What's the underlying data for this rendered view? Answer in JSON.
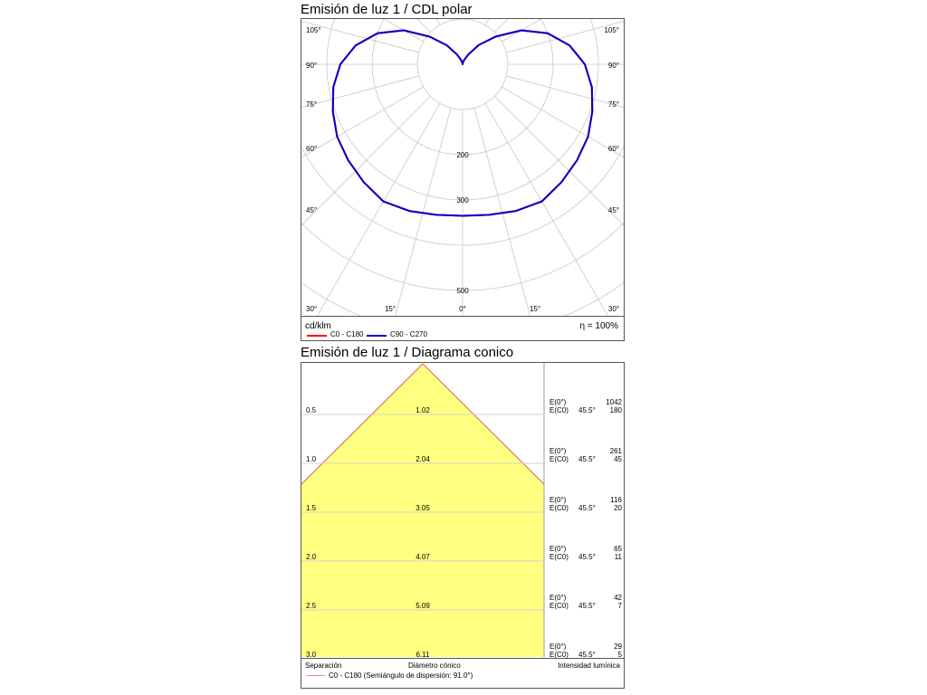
{
  "polar_chart": {
    "title": "Emisión de luz 1 / CDL polar",
    "unit": "cd/klm",
    "efficiency": "η = 100%",
    "radial_labels": [
      "200",
      "300",
      "500"
    ],
    "angle_labels_left": [
      "105°",
      "90°",
      "75°",
      "60°",
      "45°",
      "30°"
    ],
    "angle_labels_right": [
      "105°",
      "90°",
      "75°",
      "60°",
      "45°",
      "30°"
    ],
    "bottom_labels": [
      "15°",
      "0°",
      "15°"
    ],
    "legend": [
      {
        "label": "C0 - C180",
        "color": "#ff0000"
      },
      {
        "label": "C90 - C270",
        "color": "#0000cc"
      }
    ]
  },
  "cone_chart": {
    "title": "Emisión de luz 1 / Diagrama conico",
    "footer": {
      "separation_label": "Separación",
      "diameter_label": "Diámetro cónico",
      "intensity_label": "Intensidad lumínica",
      "legend_label": "C0 - C180 (Semiángulo de dispersión: 91.0°)"
    },
    "e0_label": "E(0°)",
    "ec0_label": "E(C0)",
    "angle_label": "45.5°"
  },
  "chart_data": [
    {
      "type": "line",
      "title": "Emisión de luz 1 / CDL polar",
      "coordinate_system": "polar",
      "ylabel": "cd/klm",
      "radial_ticks": [
        200,
        300,
        500
      ],
      "angle_ticks_deg": [
        0,
        15,
        30,
        45,
        60,
        75,
        90,
        105
      ],
      "series": [
        {
          "name": "C90 - C270",
          "color": "#0000cc",
          "angles_deg": [
            0,
            10,
            20,
            30,
            40,
            50,
            60,
            70,
            80,
            90,
            100,
            110,
            120,
            130,
            140,
            150,
            160,
            170,
            180
          ],
          "values": [
            335,
            338,
            345,
            350,
            340,
            330,
            320,
            305,
            290,
            270,
            240,
            200,
            150,
            95,
            55,
            25,
            10,
            3,
            0
          ]
        },
        {
          "name": "C0 - C180",
          "color": "#ff0000",
          "angles_deg": [
            0,
            10,
            20,
            30,
            40,
            50,
            60,
            70,
            80,
            90,
            100,
            110,
            120,
            130,
            140,
            150,
            160,
            170,
            180
          ],
          "values": [
            335,
            338,
            345,
            350,
            340,
            330,
            320,
            305,
            290,
            270,
            240,
            200,
            150,
            95,
            55,
            25,
            10,
            3,
            0
          ]
        }
      ],
      "efficiency": "η = 100%"
    },
    {
      "type": "table",
      "title": "Emisión de luz 1 / Diagrama conico",
      "columns": [
        "Separación",
        "Diámetro cónico",
        "E(0°)",
        "E(C0) 45.5°"
      ],
      "rows": [
        {
          "separation": "0.5",
          "diameter": "1.02",
          "e0": "1042",
          "ec0": "180"
        },
        {
          "separation": "1.0",
          "diameter": "2.04",
          "e0": "261",
          "ec0": "45"
        },
        {
          "separation": "1.5",
          "diameter": "3.05",
          "e0": "116",
          "ec0": "20"
        },
        {
          "separation": "2.0",
          "diameter": "4.07",
          "e0": "65",
          "ec0": "11"
        },
        {
          "separation": "2.5",
          "diameter": "5.09",
          "e0": "42",
          "ec0": "7"
        },
        {
          "separation": "3.0",
          "diameter": "6.11",
          "e0": "29",
          "ec0": "5"
        }
      ],
      "half_angle_deg": 91.0
    }
  ]
}
